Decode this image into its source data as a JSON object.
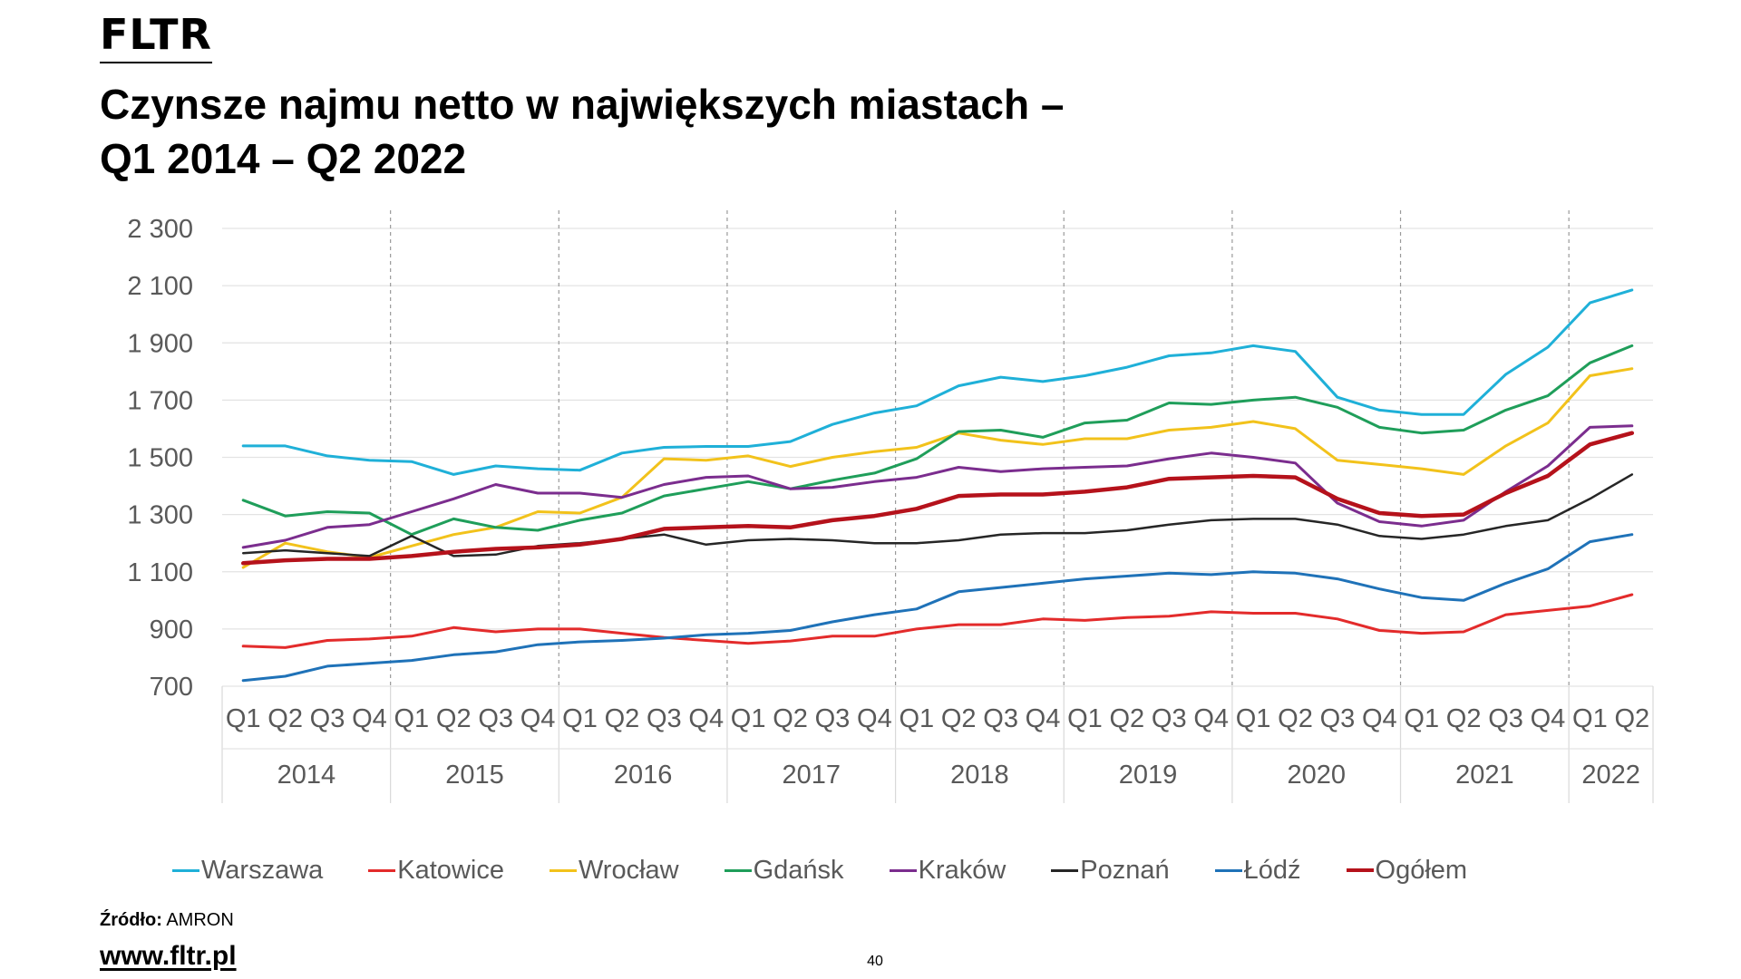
{
  "header": {
    "logo": "FLTR",
    "title_line1": "Czynsze najmu netto w największych miastach –",
    "title_line2": "Q1 2014 – Q2 2022"
  },
  "chart_data": {
    "type": "line",
    "title": "Czynsze najmu netto w największych miastach – Q1 2014 – Q2 2022",
    "x_quarters": [
      "Q1",
      "Q2",
      "Q3",
      "Q4",
      "Q1",
      "Q2",
      "Q3",
      "Q4",
      "Q1",
      "Q2",
      "Q3",
      "Q4",
      "Q1",
      "Q2",
      "Q3",
      "Q4",
      "Q1",
      "Q2",
      "Q3",
      "Q4",
      "Q1",
      "Q2",
      "Q3",
      "Q4",
      "Q1",
      "Q2",
      "Q3",
      "Q4",
      "Q1",
      "Q2",
      "Q3",
      "Q4",
      "Q1",
      "Q2"
    ],
    "years": [
      {
        "label": "2014",
        "quarters": 4
      },
      {
        "label": "2015",
        "quarters": 4
      },
      {
        "label": "2016",
        "quarters": 4
      },
      {
        "label": "2017",
        "quarters": 4
      },
      {
        "label": "2018",
        "quarters": 4
      },
      {
        "label": "2019",
        "quarters": 4
      },
      {
        "label": "2020",
        "quarters": 4
      },
      {
        "label": "2021",
        "quarters": 4
      },
      {
        "label": "2022",
        "quarters": 2
      }
    ],
    "ylim": [
      700,
      2300
    ],
    "yticks": [
      {
        "value": 700,
        "label": "700"
      },
      {
        "value": 900,
        "label": "900"
      },
      {
        "value": 1100,
        "label": "1 100"
      },
      {
        "value": 1300,
        "label": "1 300"
      },
      {
        "value": 1500,
        "label": "1 500"
      },
      {
        "value": 1700,
        "label": "1 700"
      },
      {
        "value": 1900,
        "label": "1 900"
      },
      {
        "value": 2100,
        "label": "2 100"
      },
      {
        "value": 2300,
        "label": "2 300"
      }
    ],
    "grid": true,
    "legend_position": "bottom",
    "series": [
      {
        "name": "Warszawa",
        "color": "#1FB0D8",
        "width": 3,
        "values": [
          1540,
          1540,
          1505,
          1490,
          1485,
          1440,
          1470,
          1460,
          1455,
          1515,
          1535,
          1538,
          1538,
          1555,
          1615,
          1655,
          1680,
          1750,
          1780,
          1765,
          1785,
          1815,
          1855,
          1865,
          1890,
          1870,
          1710,
          1665,
          1650,
          1650,
          1790,
          1885,
          2040,
          2085
        ]
      },
      {
        "name": "Katowice",
        "color": "#E32B2B",
        "width": 3,
        "values": [
          840,
          835,
          860,
          865,
          875,
          905,
          890,
          900,
          900,
          885,
          870,
          860,
          850,
          858,
          875,
          875,
          900,
          915,
          915,
          935,
          930,
          940,
          945,
          960,
          955,
          955,
          935,
          895,
          885,
          890,
          950,
          965,
          980,
          1020
        ]
      },
      {
        "name": "Wrocław",
        "color": "#F2C21B",
        "width": 3,
        "values": [
          1115,
          1200,
          1170,
          1150,
          1190,
          1230,
          1255,
          1310,
          1305,
          1360,
          1495,
          1490,
          1505,
          1468,
          1500,
          1520,
          1535,
          1585,
          1560,
          1545,
          1565,
          1565,
          1595,
          1605,
          1625,
          1600,
          1490,
          1475,
          1460,
          1440,
          1540,
          1620,
          1785,
          1810
        ]
      },
      {
        "name": "Gdańsk",
        "color": "#1F9E5A",
        "width": 3,
        "values": [
          1350,
          1295,
          1310,
          1305,
          1230,
          1285,
          1255,
          1245,
          1280,
          1305,
          1365,
          1390,
          1415,
          1390,
          1420,
          1445,
          1495,
          1590,
          1595,
          1570,
          1620,
          1630,
          1690,
          1685,
          1700,
          1710,
          1675,
          1605,
          1585,
          1595,
          1665,
          1715,
          1830,
          1890
        ]
      },
      {
        "name": "Kraków",
        "color": "#7B2D8E",
        "width": 3,
        "values": [
          1185,
          1210,
          1255,
          1265,
          1310,
          1355,
          1405,
          1375,
          1375,
          1360,
          1405,
          1430,
          1435,
          1390,
          1395,
          1415,
          1430,
          1465,
          1450,
          1460,
          1465,
          1470,
          1495,
          1515,
          1500,
          1480,
          1340,
          1275,
          1260,
          1280,
          1380,
          1470,
          1605,
          1610
        ]
      },
      {
        "name": "Poznań",
        "color": "#262626",
        "width": 2.5,
        "values": [
          1165,
          1175,
          1165,
          1155,
          1225,
          1155,
          1160,
          1190,
          1200,
          1215,
          1230,
          1195,
          1210,
          1215,
          1210,
          1200,
          1200,
          1210,
          1230,
          1235,
          1235,
          1245,
          1265,
          1280,
          1285,
          1285,
          1265,
          1225,
          1215,
          1230,
          1260,
          1280,
          1355,
          1440
        ]
      },
      {
        "name": "Łódź",
        "color": "#1F72B8",
        "width": 3,
        "values": [
          720,
          735,
          770,
          780,
          790,
          810,
          820,
          845,
          855,
          860,
          868,
          880,
          885,
          895,
          925,
          950,
          970,
          1030,
          1045,
          1060,
          1075,
          1085,
          1095,
          1090,
          1100,
          1095,
          1075,
          1040,
          1010,
          1000,
          1060,
          1110,
          1205,
          1230
        ]
      },
      {
        "name": "Ogółem",
        "color": "#B5121B",
        "width": 4.5,
        "values": [
          1130,
          1140,
          1145,
          1145,
          1155,
          1170,
          1180,
          1185,
          1195,
          1215,
          1250,
          1255,
          1260,
          1255,
          1280,
          1295,
          1320,
          1365,
          1370,
          1370,
          1380,
          1395,
          1425,
          1430,
          1435,
          1430,
          1355,
          1305,
          1295,
          1300,
          1375,
          1435,
          1545,
          1585
        ]
      }
    ]
  },
  "footer": {
    "source_label": "Źródło:",
    "source_value": "AMRON",
    "website": "www.fltr.pl",
    "page_number": "40"
  }
}
